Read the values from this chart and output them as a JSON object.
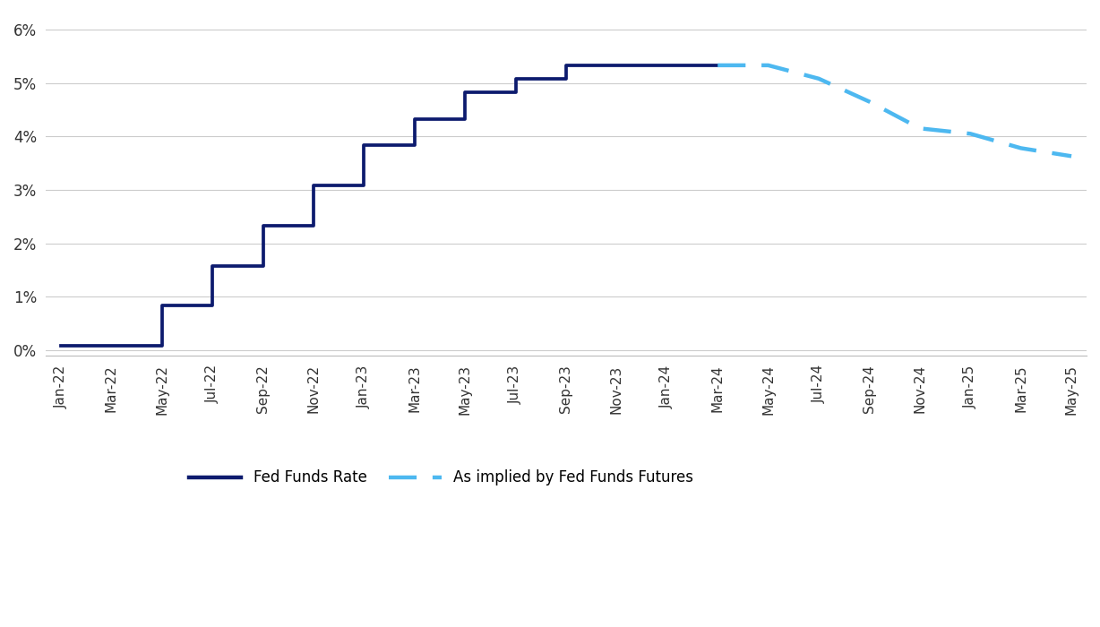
{
  "solid_color": "#0d1b6e",
  "dashed_color": "#4db8f0",
  "background_color": "#ffffff",
  "grid_color": "#cccccc",
  "ylim": [
    -0.001,
    0.063
  ],
  "yticks": [
    0.0,
    0.01,
    0.02,
    0.03,
    0.04,
    0.05,
    0.06
  ],
  "ytick_labels": [
    "0%",
    "1%",
    "2%",
    "3%",
    "4%",
    "5%",
    "6%"
  ],
  "xtick_labels": [
    "Jan-22",
    "Mar-22",
    "May-22",
    "Jul-22",
    "Sep-22",
    "Nov-22",
    "Jan-23",
    "Mar-23",
    "May-23",
    "Jul-23",
    "Sep-23",
    "Nov-23",
    "Jan-24",
    "Mar-24",
    "May-24",
    "Jul-24",
    "Sep-24",
    "Nov-24",
    "Jan-25",
    "Mar-25",
    "May-25"
  ],
  "solid_x": [
    0,
    1,
    2,
    3,
    4,
    5,
    6,
    7,
    8,
    9,
    10,
    11,
    12,
    13
  ],
  "solid_y": [
    0.0008,
    0.0008,
    0.0083,
    0.0158,
    0.0233,
    0.0308,
    0.0383,
    0.0433,
    0.0483,
    0.0508,
    0.0533,
    0.0533,
    0.0533,
    0.0533
  ],
  "dashed_x": [
    13,
    14,
    15,
    16,
    17,
    18,
    19,
    20
  ],
  "dashed_y": [
    0.0533,
    0.0533,
    0.0508,
    0.0465,
    0.0415,
    0.0405,
    0.0378,
    0.0363
  ],
  "legend_solid_label": "Fed Funds Rate",
  "legend_dashed_label": "As implied by Fed Funds Futures",
  "line_width": 2.2,
  "font_size": 12
}
